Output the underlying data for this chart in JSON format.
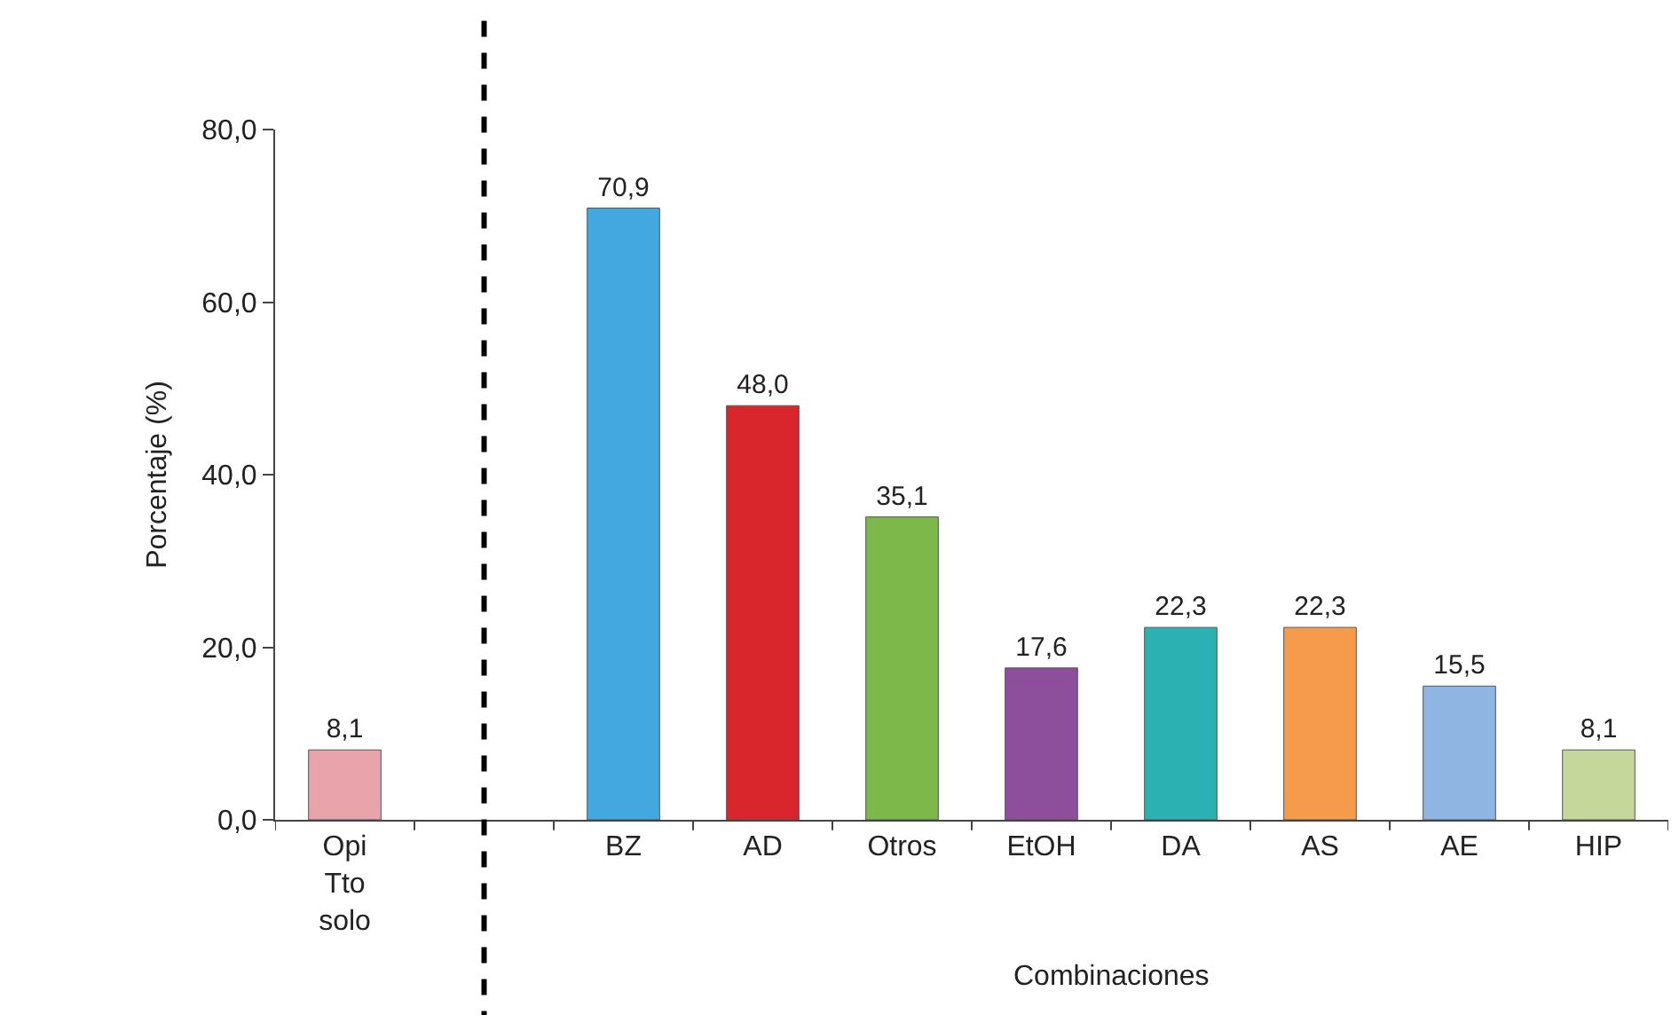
{
  "chart_data": {
    "type": "bar",
    "ylabel": "Porcentaje (%)",
    "xlabel": "Combinaciones",
    "categories": [
      "Opi Tto solo",
      null,
      "BZ",
      "AD",
      "Otros",
      "EtOH",
      "DA",
      "AS",
      "AE",
      "HIP"
    ],
    "values": [
      8.1,
      null,
      70.9,
      48.0,
      35.1,
      17.6,
      22.3,
      22.3,
      15.5,
      8.1
    ],
    "value_labels": [
      "8,1",
      null,
      "70,9",
      "48,0",
      "35,1",
      "17,6",
      "22,3",
      "22,3",
      "15,5",
      "8,1"
    ],
    "colors": [
      "#e8a3ab",
      "#bbbbbb",
      "#43a8df",
      "#d8262c",
      "#7cb84a",
      "#8d4f9c",
      "#2bb1b1",
      "#f59b4b",
      "#8fb5e2",
      "#c5d79b"
    ],
    "ylim": [
      0,
      80
    ],
    "yticks": [
      {
        "value": 0,
        "label": "0,0"
      },
      {
        "value": 20,
        "label": "20,0"
      },
      {
        "value": 40,
        "label": "40,0"
      },
      {
        "value": 60,
        "label": "60,0"
      },
      {
        "value": 80,
        "label": "80,0"
      }
    ],
    "legend": false
  }
}
